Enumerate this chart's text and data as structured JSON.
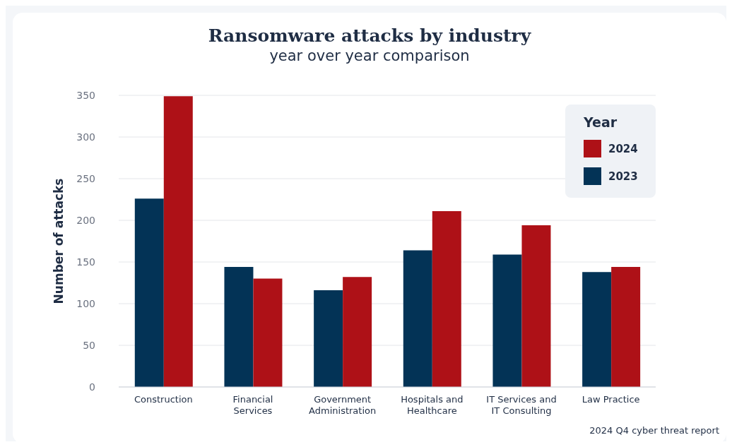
{
  "chart_data": {
    "type": "bar",
    "title": "Ransomware attacks by industry",
    "subtitle": "year over year comparison",
    "ylabel": "Number of attacks",
    "legend_title": "Year",
    "categories": [
      "Construction",
      "Financial Services",
      "Government Administration",
      "Hospitals and Healthcare",
      "IT Services and IT Consulting",
      "Law Practice"
    ],
    "series": [
      {
        "name": "2023",
        "color": "#033356",
        "values": [
          226,
          144,
          116,
          164,
          159,
          138
        ]
      },
      {
        "name": "2024",
        "color": "#ae1117",
        "values": [
          349,
          130,
          132,
          211,
          194,
          144
        ]
      }
    ],
    "ylim": [
      0,
      350
    ],
    "yticks": [
      0,
      50,
      100,
      150,
      200,
      250,
      300,
      350
    ],
    "grid": "y",
    "legend": "top right",
    "annotations": [
      "2024 Q4 cyber threat report"
    ]
  }
}
